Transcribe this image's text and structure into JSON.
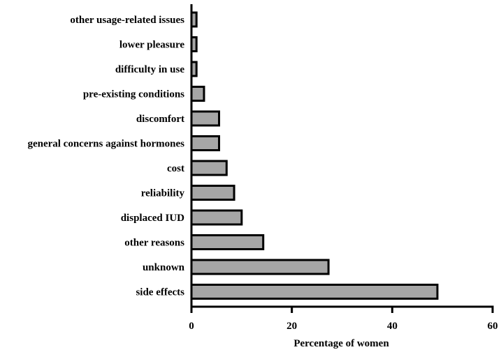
{
  "chart_data": {
    "type": "bar",
    "orientation": "horizontal",
    "categories": [
      "other usage-related issues",
      "lower pleasure",
      "difficulty in use",
      "pre-existing conditions",
      "discomfort",
      "general concerns against hormones",
      "cost",
      "reliability",
      "displaced IUD",
      "other reasons",
      "unknown",
      "side effects"
    ],
    "values": [
      1,
      1,
      1,
      2.5,
      5.5,
      5.5,
      7,
      8.5,
      10,
      14.3,
      27.3,
      49
    ],
    "title": "",
    "xlabel": "Percentage of women",
    "ylabel": "",
    "xlim": [
      0,
      60
    ],
    "xticks": [
      0,
      20,
      40,
      60
    ],
    "grid": false,
    "bar_color": "#a6a6a6",
    "bar_edge_color": "#000000"
  }
}
